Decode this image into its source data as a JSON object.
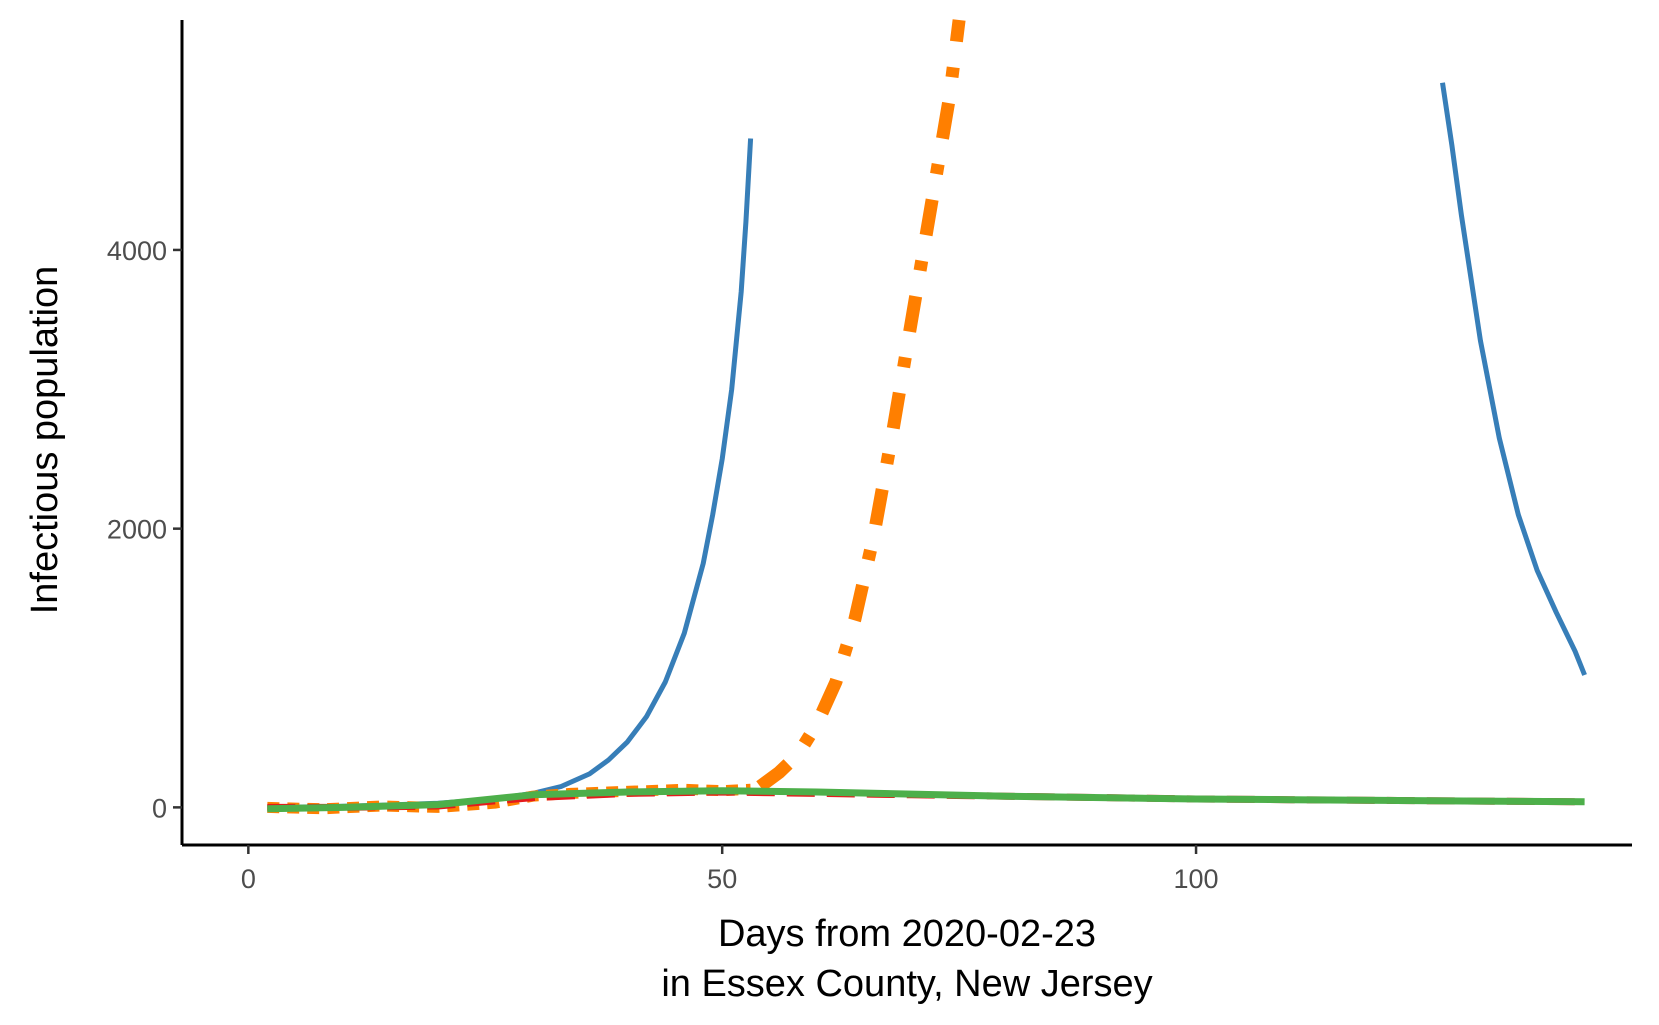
{
  "chart_data": {
    "type": "line",
    "title": "",
    "xlabel": "Days from 2020-02-23",
    "xlabel_line2": "in Essex County, New Jersey",
    "ylabel": "Infectious population",
    "xlim": [
      -7,
      146
    ],
    "ylim": [
      -270,
      5650
    ],
    "x_ticks": [
      0,
      50,
      100
    ],
    "y_ticks": [
      0,
      2000,
      4000
    ],
    "grid": false,
    "legend": "none",
    "series": [
      {
        "color": "#377eb8",
        "dash": "solid",
        "width": 5,
        "x": [
          2,
          8,
          14,
          20,
          26,
          30,
          33,
          36,
          38,
          40,
          42,
          44,
          46,
          48,
          49,
          50,
          51,
          52,
          52.5,
          53
        ],
        "y": [
          0,
          5,
          15,
          30,
          60,
          100,
          150,
          240,
          340,
          470,
          650,
          900,
          1250,
          1750,
          2100,
          2500,
          3000,
          3700,
          4200,
          4800
        ]
      },
      {
        "color": "#377eb8",
        "dash": "solid",
        "width": 5,
        "x": [
          126,
          127,
          128,
          129,
          130,
          132,
          134,
          136,
          138,
          140,
          141
        ],
        "y": [
          5200,
          4750,
          4250,
          3800,
          3350,
          2650,
          2100,
          1700,
          1400,
          1120,
          950
        ]
      },
      {
        "color": "#ff7f00",
        "dash": "12,8",
        "width": 11,
        "x": [
          2,
          8,
          14,
          20,
          26,
          30,
          34,
          38,
          42,
          46,
          50,
          53
        ],
        "y": [
          0,
          -10,
          10,
          0,
          30,
          80,
          100,
          110,
          120,
          130,
          120,
          130
        ]
      },
      {
        "color": "#ff7f00",
        "dash": "36,26,10,26",
        "width": 13,
        "x": [
          54,
          56,
          58,
          60,
          62,
          64,
          66,
          68,
          70,
          72,
          74,
          75
        ],
        "y": [
          150,
          250,
          380,
          600,
          900,
          1350,
          1950,
          2700,
          3500,
          4300,
          5100,
          5650
        ]
      },
      {
        "color": "#e41a1c",
        "dash": "28,12",
        "width": 7,
        "x": [
          2,
          10,
          20,
          30,
          40,
          50,
          60,
          70,
          80,
          90,
          100,
          110,
          120,
          130,
          141
        ],
        "y": [
          0,
          0,
          10,
          70,
          100,
          110,
          100,
          90,
          80,
          70,
          60,
          55,
          50,
          45,
          40
        ]
      },
      {
        "color": "#4daf4a",
        "dash": "solid",
        "width": 7,
        "x": [
          2,
          10,
          20,
          30,
          40,
          50,
          60,
          70,
          80,
          90,
          100,
          110,
          120,
          130,
          141
        ],
        "y": [
          -10,
          0,
          20,
          90,
          110,
          120,
          110,
          95,
          80,
          70,
          60,
          55,
          50,
          45,
          40
        ]
      }
    ]
  }
}
